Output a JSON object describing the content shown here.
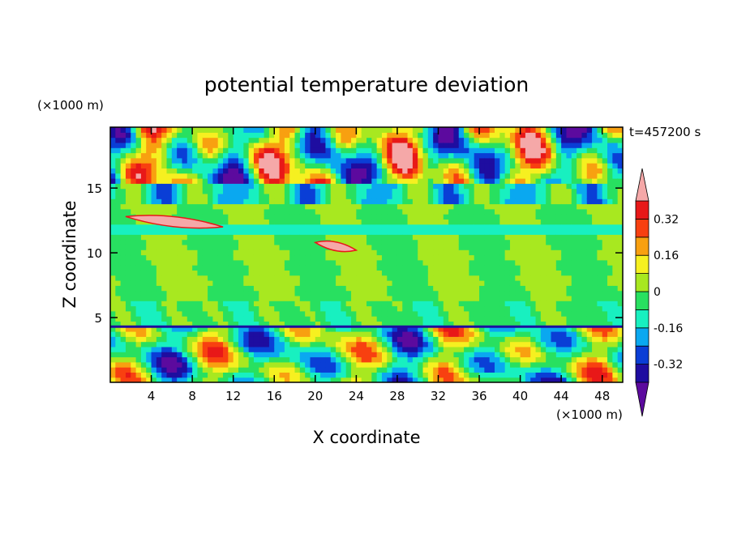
{
  "chart_data": {
    "type": "heatmap",
    "title": "potential temperature deviation",
    "xlabel": "X coordinate",
    "ylabel": "Z coordinate",
    "x_unit": "(×1000 m)",
    "y_unit": "(×1000 m)",
    "time_label": "t=457200 s",
    "xlim": [
      0,
      50
    ],
    "ylim": [
      0,
      19.7
    ],
    "x_ticks": [
      4,
      8,
      12,
      16,
      20,
      24,
      28,
      32,
      36,
      40,
      44,
      48
    ],
    "y_ticks": [
      5,
      10,
      15
    ],
    "colorbar": {
      "levels": [
        -0.4,
        -0.32,
        -0.24,
        -0.16,
        -0.08,
        0,
        0.08,
        0.16,
        0.24,
        0.32,
        0.4
      ],
      "tick_labels": [
        "-0.32",
        "-0.16",
        "0",
        "0.16",
        "0.32"
      ],
      "tick_values": [
        -0.32,
        -0.16,
        0,
        0.16,
        0.32
      ],
      "colors": [
        "#5c0a9e",
        "#1e0da0",
        "#0a3ed6",
        "#0aa8f0",
        "#18f0c0",
        "#28e060",
        "#a8e820",
        "#f6f020",
        "#f8a010",
        "#f84010",
        "#e81818",
        "#f5a8a8"
      ],
      "below_color": "#5c0a9e",
      "above_color": "#f5a8a8"
    },
    "grid": false,
    "legend": "colorbar-right"
  }
}
